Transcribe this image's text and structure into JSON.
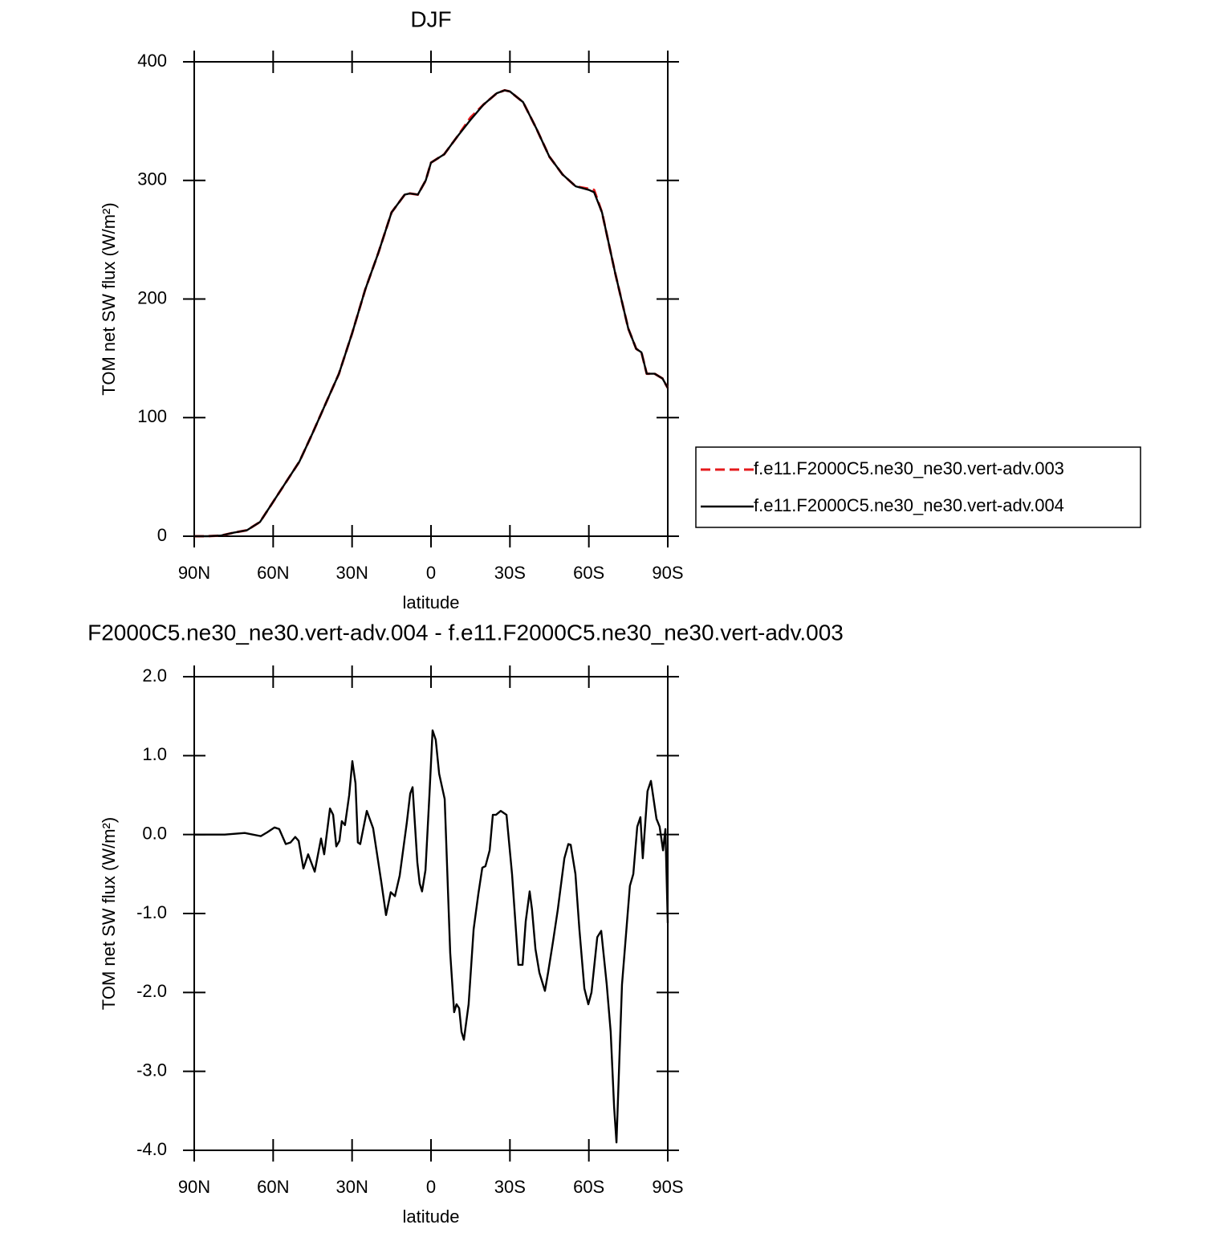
{
  "chart_data": [
    {
      "type": "line",
      "title": "DJF",
      "x_label": "latitude",
      "y_label": "TOM net SW flux (W/m²)",
      "x": [
        90,
        85,
        80,
        75,
        70,
        65,
        60,
        55,
        50,
        45,
        40,
        35,
        30,
        25,
        20,
        15,
        10,
        8,
        5,
        2,
        0,
        -5,
        -10,
        -15,
        -20,
        -25,
        -28,
        -30,
        -35,
        -40,
        -45,
        -50,
        -55,
        -60,
        -62,
        -65,
        -70,
        -75,
        -78,
        -80,
        -82,
        -85,
        -88,
        -90
      ],
      "series": [
        {
          "name": "f.e11.F2000C5.ne30_ne30.vert-adv.003",
          "color": "#e41a1c",
          "dashed": true,
          "values": [
            0,
            0,
            0.5,
            3,
            5,
            12,
            29,
            46,
            63,
            87,
            112,
            137,
            171,
            208,
            239,
            273,
            288,
            289,
            288,
            300,
            315,
            322,
            337,
            353,
            364,
            373.5,
            376,
            375,
            366,
            344,
            320,
            305,
            295,
            293,
            292,
            273,
            222,
            175,
            158,
            155,
            137,
            137,
            133,
            125
          ]
        },
        {
          "name": "f.e11.F2000C5.ne30_ne30.vert-adv.004",
          "color": "#000000",
          "dashed": false,
          "values": [
            0,
            0,
            0.5,
            3,
            5,
            12,
            29,
            46,
            63,
            87,
            112,
            137,
            171,
            208,
            239,
            273,
            288,
            289,
            288,
            300,
            315,
            322,
            337,
            351,
            364,
            373.5,
            376,
            375,
            366,
            344,
            320,
            305,
            295,
            292,
            290,
            273,
            222,
            175,
            158,
            155,
            137,
            137,
            133,
            125
          ]
        }
      ],
      "xlim": [
        90,
        -90
      ],
      "xticks": [
        {
          "value": 90,
          "label": "90N"
        },
        {
          "value": 60,
          "label": "60N"
        },
        {
          "value": 30,
          "label": "30N"
        },
        0,
        {
          "value": -30,
          "label": "30S"
        },
        {
          "value": -60,
          "label": "60S"
        },
        {
          "value": -90,
          "label": "90S"
        }
      ],
      "ylim": [
        0,
        400
      ],
      "yticks": [
        0,
        100,
        200,
        300,
        400
      ],
      "legend": "right"
    },
    {
      "type": "line",
      "title": "F2000C5.ne30_ne30.vert-adv.004 - f.e11.F2000C5.ne30_ne30.vert-adv.003",
      "x_label": "latitude",
      "y_label": "TOM net SW flux (W/m²)",
      "x": [
        90,
        78.4,
        70.8,
        64.7,
        62.2,
        59.5,
        57.7,
        55.2,
        53.4,
        51.6,
        50.3,
        48.5,
        46.7,
        44.2,
        41.8,
        40.6,
        38.4,
        37.2,
        36,
        34.8,
        33.9,
        32.7,
        31.1,
        29.9,
        28.7,
        27.8,
        26.9,
        24.4,
        22,
        18.9,
        17.1,
        15.3,
        13.7,
        11.9,
        9.2,
        7.9,
        7,
        5.2,
        4.3,
        3.4,
        2.1,
        0.6,
        -0.6,
        -1.8,
        -3.1,
        -5.2,
        -7.3,
        -8.8,
        -9.7,
        -10.7,
        -11.6,
        -12.5,
        -14.3,
        -16.2,
        -18,
        -19.5,
        -20.7,
        -22.3,
        -23.5,
        -24.7,
        -26.5,
        -28.7,
        -30.8,
        -33.2,
        -34.8,
        -36,
        -37.5,
        -38.4,
        -39.7,
        -41.2,
        -43.3,
        -44.5,
        -46.4,
        -48.2,
        -50.7,
        -52.2,
        -53.1,
        -54.9,
        -56.4,
        -58.3,
        -59.8,
        -61,
        -63.2,
        -64.7,
        -66.8,
        -68.3,
        -69.6,
        -70.5,
        -72.6,
        -75.6,
        -76.9,
        -78.4,
        -79.6,
        -80.5,
        -82.3,
        -83.6,
        -85.7,
        -86.9,
        -88.2,
        -89.1,
        -90
      ],
      "values": [
        0,
        0,
        0.02,
        -0.02,
        0.03,
        0.09,
        0.07,
        -0.12,
        -0.1,
        -0.03,
        -0.08,
        -0.43,
        -0.25,
        -0.47,
        -0.05,
        -0.25,
        0.33,
        0.25,
        -0.15,
        -0.08,
        0.17,
        0.12,
        0.5,
        0.93,
        0.65,
        -0.1,
        -0.12,
        0.3,
        0.08,
        -0.6,
        -1.02,
        -0.73,
        -0.78,
        -0.52,
        0.15,
        0.52,
        0.6,
        -0.35,
        -0.62,
        -0.72,
        -0.45,
        0.5,
        1.32,
        1.2,
        0.77,
        0.45,
        -1.5,
        -2.25,
        -2.15,
        -2.2,
        -2.5,
        -2.6,
        -2.15,
        -1.2,
        -0.75,
        -0.42,
        -0.4,
        -0.2,
        0.25,
        0.25,
        0.3,
        0.25,
        -0.5,
        -1.65,
        -1.65,
        -1.1,
        -0.72,
        -0.95,
        -1.45,
        -1.75,
        -1.98,
        -1.75,
        -1.35,
        -0.95,
        -0.3,
        -0.12,
        -0.13,
        -0.5,
        -1.2,
        -1.95,
        -2.15,
        -2.0,
        -1.3,
        -1.22,
        -1.9,
        -2.5,
        -3.45,
        -3.9,
        -1.9,
        -0.65,
        -0.5,
        0.1,
        0.22,
        -0.3,
        0.55,
        0.68,
        0.2,
        0.1,
        -0.2,
        0.07,
        -1.12
      ],
      "color": "#000000",
      "xlim": [
        90,
        -90
      ],
      "xticks": [
        {
          "value": 90,
          "label": "90N"
        },
        {
          "value": 60,
          "label": "60N"
        },
        {
          "value": 30,
          "label": "30N"
        },
        0,
        {
          "value": -30,
          "label": "30S"
        },
        {
          "value": -60,
          "label": "60S"
        },
        {
          "value": -90,
          "label": "90S"
        }
      ],
      "ylim": [
        -4,
        2
      ],
      "yticks": [
        {
          "value": -4,
          "label": "-4.0"
        },
        {
          "value": -3,
          "label": "-3.0"
        },
        {
          "value": -2,
          "label": "-2.0"
        },
        {
          "value": -1,
          "label": "-1.0"
        },
        {
          "value": 0,
          "label": "0.0"
        },
        {
          "value": 1,
          "label": "1.0"
        },
        {
          "value": 2,
          "label": "2.0"
        }
      ]
    }
  ]
}
